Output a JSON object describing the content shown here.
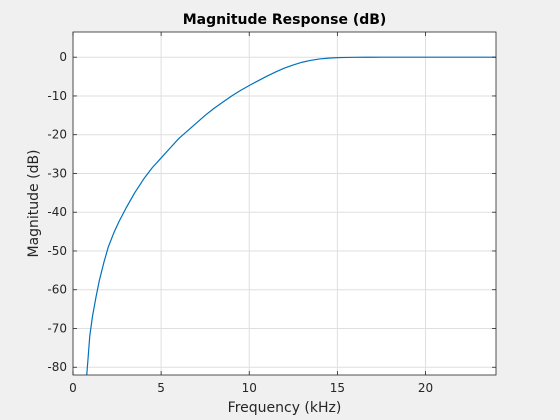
{
  "chart_data": {
    "type": "line",
    "title": "Magnitude Response (dB)",
    "xlabel": "Frequency (kHz)",
    "ylabel": "Magnitude (dB)",
    "xlim": [
      0,
      24
    ],
    "ylim": [
      -82,
      6.5
    ],
    "xticks": [
      0,
      5,
      10,
      15,
      20
    ],
    "yticks": [
      0,
      -10,
      -20,
      -30,
      -40,
      -50,
      -60,
      -70,
      -80
    ],
    "grid": true,
    "series": [
      {
        "color": "#0072bd",
        "x": [
          0.78,
          0.85,
          0.95,
          1.1,
          1.3,
          1.5,
          1.75,
          2.0,
          2.3,
          2.6,
          3.0,
          3.5,
          4.0,
          4.5,
          5.0,
          5.5,
          6.0,
          6.5,
          7.0,
          7.5,
          8.0,
          8.5,
          9.0,
          9.5,
          10.0,
          10.5,
          11.0,
          11.5,
          12.0,
          12.5,
          13.0,
          13.5,
          14.0,
          14.5,
          15.0,
          15.5,
          16.0,
          16.5,
          17.0,
          18.0,
          19.0,
          20.0,
          21.0,
          22.0,
          23.0,
          24.0
        ],
        "y": [
          -82,
          -78,
          -72,
          -67,
          -62,
          -57.5,
          -53,
          -49,
          -45.5,
          -42.5,
          -39,
          -35,
          -31.5,
          -28.5,
          -26,
          -23.5,
          -21,
          -19,
          -17,
          -15,
          -13.2,
          -11.6,
          -10,
          -8.6,
          -7.3,
          -6.1,
          -4.9,
          -3.8,
          -2.8,
          -2.0,
          -1.3,
          -0.8,
          -0.45,
          -0.25,
          -0.12,
          -0.06,
          -0.03,
          -0.02,
          -0.01,
          0,
          0,
          0,
          0,
          0,
          0,
          0
        ]
      }
    ]
  }
}
